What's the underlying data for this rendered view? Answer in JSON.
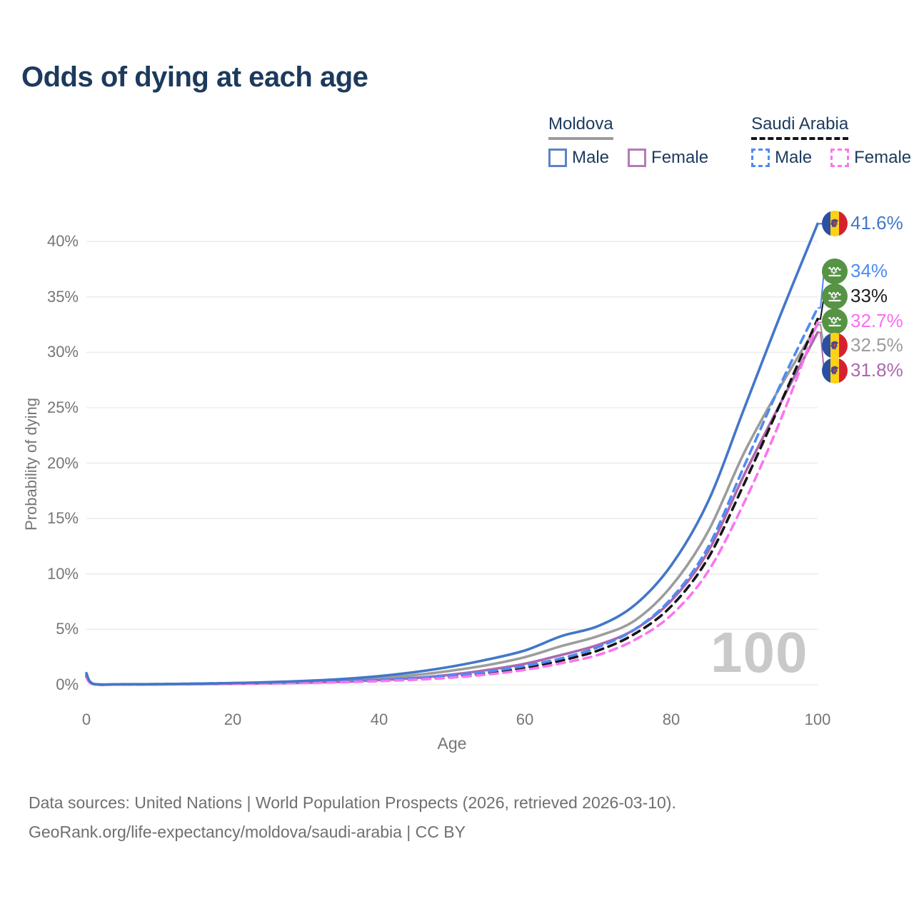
{
  "title": "Odds of dying at each age",
  "legend": {
    "groups": [
      {
        "country": "Moldova",
        "line_style": "solid",
        "country_line_color": "#9c9c9c",
        "items": [
          {
            "label": "Male",
            "color": "#4377c8"
          },
          {
            "label": "Female",
            "color": "#ab68ae"
          }
        ]
      },
      {
        "country": "Saudi Arabia",
        "line_style": "dashed",
        "country_line_color": "#141414",
        "items": [
          {
            "label": "Male",
            "color": "#4d8af5"
          },
          {
            "label": "Female",
            "color": "#fb74f0"
          }
        ]
      }
    ]
  },
  "chart_data": {
    "type": "line",
    "title": "Odds of dying at each age",
    "xlabel": "Age",
    "ylabel": "Probability of dying",
    "xlim": [
      0,
      100
    ],
    "ylim_pct": [
      0,
      43
    ],
    "grid": "horizontal",
    "legend_position": "top-right",
    "watermark": "100",
    "x_tick_values": [
      0,
      20,
      40,
      60,
      80,
      100
    ],
    "x_tick_labels": [
      "0",
      "20",
      "40",
      "60",
      "80",
      "100"
    ],
    "y_tick_values": [
      40,
      35,
      30,
      25,
      20,
      15,
      10,
      5,
      0
    ],
    "y_tick_labels": [
      "40%",
      "35%",
      "30%",
      "25%",
      "20%",
      "15%",
      "10%",
      "5%",
      "0%"
    ],
    "x": [
      0,
      1,
      5,
      10,
      15,
      20,
      25,
      30,
      35,
      40,
      45,
      50,
      55,
      60,
      65,
      70,
      75,
      80,
      85,
      90,
      95,
      100
    ],
    "series": [
      {
        "name": "Moldova (country)",
        "country": "Moldova",
        "color": "#9c9c9c",
        "dash": false,
        "values": [
          0.92,
          0.07,
          0.04,
          0.05,
          0.08,
          0.12,
          0.18,
          0.27,
          0.4,
          0.6,
          0.88,
          1.28,
          1.8,
          2.5,
          3.5,
          4.4,
          5.8,
          8.9,
          13.8,
          21.0,
          27.0,
          32.5
        ]
      },
      {
        "name": "Moldova Female",
        "country": "Moldova",
        "color": "#ab68ae",
        "dash": false,
        "values": [
          0.8,
          0.06,
          0.03,
          0.04,
          0.06,
          0.09,
          0.13,
          0.19,
          0.28,
          0.42,
          0.62,
          0.92,
          1.35,
          1.9,
          2.7,
          3.6,
          5.0,
          7.6,
          12.0,
          19.0,
          25.5,
          31.8
        ]
      },
      {
        "name": "Saudi Arabia (country)",
        "country": "Saudi Arabia",
        "color": "#161616",
        "dash": true,
        "values": [
          0.72,
          0.055,
          0.035,
          0.05,
          0.09,
          0.13,
          0.18,
          0.23,
          0.3,
          0.4,
          0.55,
          0.76,
          1.08,
          1.55,
          2.2,
          3.1,
          4.6,
          7.1,
          11.4,
          18.2,
          25.5,
          33.0
        ]
      },
      {
        "name": "Saudi Arabia Male",
        "country": "Saudi Arabia",
        "color": "#4d8af5",
        "dash": true,
        "values": [
          0.78,
          0.06,
          0.04,
          0.06,
          0.1,
          0.15,
          0.2,
          0.26,
          0.34,
          0.45,
          0.62,
          0.85,
          1.2,
          1.7,
          2.4,
          3.4,
          5.0,
          7.8,
          12.4,
          19.8,
          27.2,
          34.0
        ]
      },
      {
        "name": "Saudi Arabia Female",
        "country": "Saudi Arabia",
        "color": "#fb74f0",
        "dash": true,
        "values": [
          0.66,
          0.05,
          0.03,
          0.04,
          0.07,
          0.1,
          0.13,
          0.17,
          0.23,
          0.33,
          0.46,
          0.65,
          0.94,
          1.35,
          1.95,
          2.7,
          4.05,
          6.3,
          10.2,
          16.5,
          24.0,
          32.7
        ]
      },
      {
        "name": "Moldova Male",
        "country": "Moldova",
        "color": "#4377c8",
        "dash": false,
        "values": [
          1.05,
          0.08,
          0.05,
          0.06,
          0.1,
          0.16,
          0.24,
          0.35,
          0.52,
          0.78,
          1.15,
          1.65,
          2.3,
          3.1,
          4.4,
          5.3,
          7.2,
          10.8,
          16.5,
          25.0,
          33.5,
          41.6
        ]
      }
    ],
    "end_labels": [
      {
        "icon": "moldova-flag",
        "text": "41.6%",
        "color": "#4377c8"
      },
      {
        "icon": "saudi-flag",
        "text": "34%",
        "color": "#4d8af5"
      },
      {
        "icon": "saudi-flag",
        "text": "33%",
        "color": "#1d1d1d"
      },
      {
        "icon": "saudi-flag",
        "text": "32.7%",
        "color": "#fb6ef2"
      },
      {
        "icon": "moldova-flag",
        "text": "32.5%",
        "color": "#9c9c9c"
      },
      {
        "icon": "moldova-flag",
        "text": "31.8%",
        "color": "#ab68ae"
      }
    ]
  },
  "footer": {
    "line1": "Data sources: United Nations | World Population Prospects (2026, retrieved 2026-03-10).",
    "line2": "GeoRank.org/life-expectancy/moldova/saudi-arabia | CC BY"
  }
}
